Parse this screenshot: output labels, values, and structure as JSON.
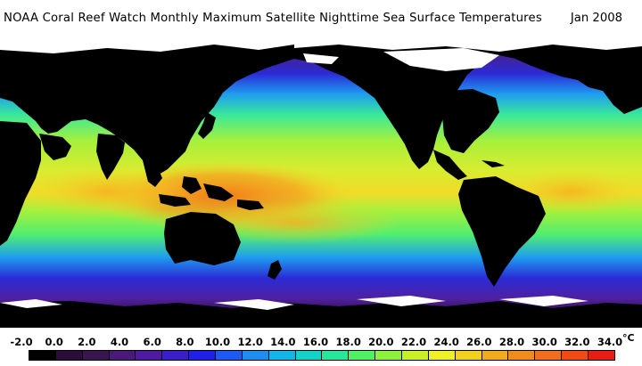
{
  "header": {
    "title": "NOAA Coral Reef Watch Monthly Maximum Satellite Nighttime Sea Surface Temperatures",
    "date": "Jan 2008"
  },
  "map": {
    "icon": "world-sst-map",
    "colors": {
      "land": "#000000",
      "ice": "#ffffff",
      "polar_cold": "#4a1f8f",
      "cold": "#2b2bd6",
      "cool": "#1e9cf0",
      "mild": "#38e89a",
      "temperate": "#a6f03c",
      "warm": "#f0dc28",
      "hot": "#f6a020",
      "hottest": "#f07818"
    }
  },
  "legend": {
    "unit": "°C",
    "ticks": [
      "-2.0",
      "0.0",
      "2.0",
      "4.0",
      "6.0",
      "8.0",
      "10.0",
      "12.0",
      "14.0",
      "16.0",
      "18.0",
      "20.0",
      "22.0",
      "24.0",
      "26.0",
      "28.0",
      "30.0",
      "32.0",
      "34.0"
    ],
    "swatches": [
      "#000000",
      "#2a0d3a",
      "#3a1650",
      "#4b1a78",
      "#4e1aa0",
      "#3a1ec8",
      "#2020e6",
      "#1e5af0",
      "#1e8cf0",
      "#14b4e6",
      "#14d2c8",
      "#28e69a",
      "#50f064",
      "#8cf03c",
      "#c8f028",
      "#f0f028",
      "#f0d21e",
      "#f0aa1e",
      "#f08c1e",
      "#f06e1e",
      "#f04b14",
      "#e61e14"
    ]
  }
}
